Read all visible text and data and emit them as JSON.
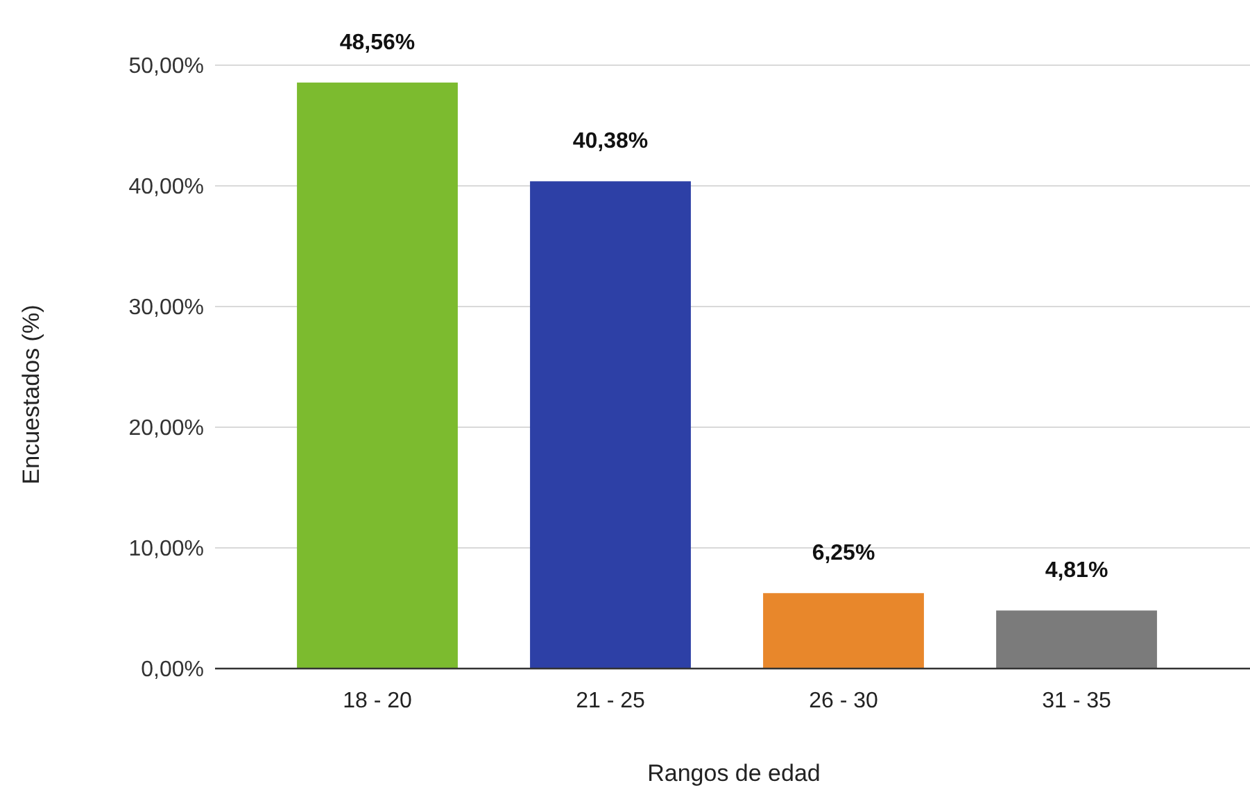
{
  "chart_data": {
    "type": "bar",
    "xlabel": "Rangos de edad",
    "ylabel": "Encuestados (%)",
    "categories": [
      "18 - 20",
      "21 - 25",
      "26 - 30",
      "31 - 35"
    ],
    "values": [
      48.56,
      40.38,
      6.25,
      4.81
    ],
    "colors": [
      "#7cbb2f",
      "#2d40a6",
      "#e8872b",
      "#7b7b7b"
    ],
    "value_labels": [
      "48,56%",
      "40,38%",
      "6,25%",
      "4,81%"
    ],
    "ylim": [
      0,
      50
    ],
    "yticks": [
      {
        "value": 0,
        "label": "0,00%"
      },
      {
        "value": 10,
        "label": "10,00%"
      },
      {
        "value": 20,
        "label": "20,00%"
      },
      {
        "value": 30,
        "label": "30,00%"
      },
      {
        "value": 40,
        "label": "40,00%"
      },
      {
        "value": 50,
        "label": "50,00%"
      }
    ],
    "grid": "y"
  }
}
